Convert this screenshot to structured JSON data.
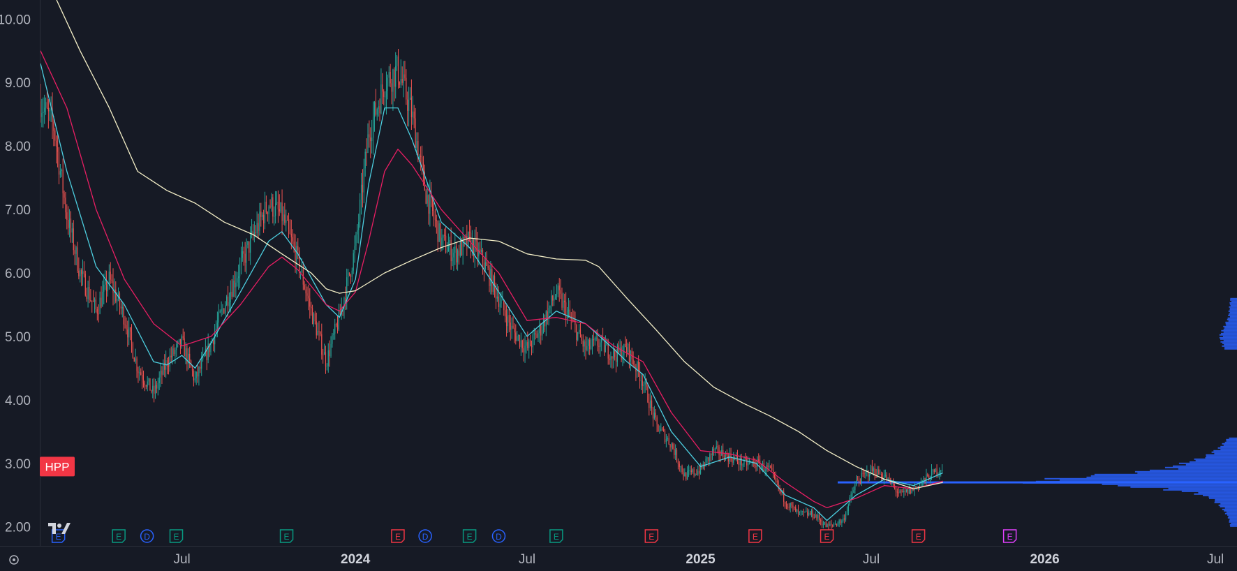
{
  "symbol_badge": {
    "label": "HPP",
    "color": "#f23645"
  },
  "colors": {
    "background": "#161a25",
    "up_candle": "#26a69a",
    "down_candle": "#ef5350",
    "ema_short": "#4dd0e1",
    "ema_mid": "#e91e63",
    "sma_long": "#f5f0c8",
    "volume_profile": "#2962ff",
    "axis_text": "#b2b5be"
  },
  "chart_data": {
    "type": "candlestick",
    "title": "",
    "xlabel": "",
    "ylabel": "",
    "ylim": [
      1.7,
      10.3
    ],
    "xlim": [
      "2023-02-01",
      "2026-07-15"
    ],
    "y_ticks": [
      "2.00",
      "3.00",
      "4.00",
      "5.00",
      "6.00",
      "7.00",
      "8.00",
      "9.00",
      "10.00"
    ],
    "x_ticks": [
      {
        "label": "Jul",
        "date": "2023-07-01",
        "bold": false
      },
      {
        "label": "2024",
        "date": "2024-01-01",
        "bold": true
      },
      {
        "label": "Jul",
        "date": "2024-07-01",
        "bold": false
      },
      {
        "label": "2025",
        "date": "2025-01-01",
        "bold": true
      },
      {
        "label": "Jul",
        "date": "2025-07-01",
        "bold": false
      },
      {
        "label": "2026",
        "date": "2026-01-01",
        "bold": true
      },
      {
        "label": "Jul",
        "date": "2026-07-01",
        "bold": false
      }
    ],
    "price_path": [
      [
        "2023-02-01",
        8.7
      ],
      [
        "2023-02-15",
        8.3
      ],
      [
        "2023-03-01",
        6.9
      ],
      [
        "2023-03-15",
        6.0
      ],
      [
        "2023-04-01",
        5.4
      ],
      [
        "2023-04-15",
        5.9
      ],
      [
        "2023-05-01",
        5.3
      ],
      [
        "2023-05-15",
        4.5
      ],
      [
        "2023-06-01",
        4.1
      ],
      [
        "2023-06-15",
        4.6
      ],
      [
        "2023-07-01",
        4.9
      ],
      [
        "2023-07-15",
        4.3
      ],
      [
        "2023-08-01",
        4.9
      ],
      [
        "2023-08-15",
        5.5
      ],
      [
        "2023-09-01",
        6.1
      ],
      [
        "2023-09-15",
        6.6
      ],
      [
        "2023-10-01",
        7.1
      ],
      [
        "2023-10-15",
        6.9
      ],
      [
        "2023-11-01",
        6.2
      ],
      [
        "2023-11-15",
        5.4
      ],
      [
        "2023-12-01",
        4.6
      ],
      [
        "2023-12-15",
        5.3
      ],
      [
        "2024-01-01",
        6.4
      ],
      [
        "2024-01-15",
        8.2
      ],
      [
        "2024-02-01",
        9.0
      ],
      [
        "2024-02-15",
        9.2
      ],
      [
        "2024-03-01",
        8.5
      ],
      [
        "2024-03-15",
        7.3
      ],
      [
        "2024-04-01",
        6.5
      ],
      [
        "2024-04-15",
        6.3
      ],
      [
        "2024-05-01",
        6.5
      ],
      [
        "2024-05-15",
        6.2
      ],
      [
        "2024-06-01",
        5.6
      ],
      [
        "2024-06-15",
        5.1
      ],
      [
        "2024-07-01",
        4.8
      ],
      [
        "2024-07-15",
        5.1
      ],
      [
        "2024-08-01",
        5.7
      ],
      [
        "2024-08-15",
        5.3
      ],
      [
        "2024-09-01",
        4.8
      ],
      [
        "2024-09-15",
        4.9
      ],
      [
        "2024-10-01",
        4.7
      ],
      [
        "2024-10-15",
        4.8
      ],
      [
        "2024-11-01",
        4.3
      ],
      [
        "2024-11-15",
        3.6
      ],
      [
        "2024-12-01",
        3.3
      ],
      [
        "2024-12-15",
        2.8
      ],
      [
        "2025-01-01",
        2.9
      ],
      [
        "2025-01-15",
        3.2
      ],
      [
        "2025-02-01",
        3.1
      ],
      [
        "2025-02-15",
        3.0
      ],
      [
        "2025-03-01",
        3.0
      ],
      [
        "2025-03-15",
        2.9
      ],
      [
        "2025-04-01",
        2.4
      ],
      [
        "2025-04-15",
        2.2
      ],
      [
        "2025-05-01",
        2.2
      ],
      [
        "2025-05-15",
        2.0
      ],
      [
        "2025-06-01",
        2.1
      ],
      [
        "2025-06-15",
        2.7
      ],
      [
        "2025-07-01",
        2.9
      ],
      [
        "2025-07-15",
        2.8
      ],
      [
        "2025-08-01",
        2.5
      ],
      [
        "2025-08-15",
        2.6
      ],
      [
        "2025-09-01",
        2.8
      ],
      [
        "2025-09-15",
        2.95
      ]
    ],
    "series": [
      {
        "name": "",
        "color": "#4dd0e1",
        "points": [
          [
            "2023-02-01",
            9.3
          ],
          [
            "2023-03-01",
            7.6
          ],
          [
            "2023-04-01",
            6.1
          ],
          [
            "2023-05-01",
            5.5
          ],
          [
            "2023-06-01",
            4.6
          ],
          [
            "2023-06-15",
            4.55
          ],
          [
            "2023-07-01",
            4.7
          ],
          [
            "2023-07-15",
            4.5
          ],
          [
            "2023-08-01",
            4.9
          ],
          [
            "2023-09-01",
            5.7
          ],
          [
            "2023-10-01",
            6.5
          ],
          [
            "2023-10-15",
            6.65
          ],
          [
            "2023-11-01",
            6.3
          ],
          [
            "2023-12-01",
            5.5
          ],
          [
            "2023-12-15",
            5.3
          ],
          [
            "2024-01-01",
            5.9
          ],
          [
            "2024-01-15",
            7.4
          ],
          [
            "2024-02-01",
            8.6
          ],
          [
            "2024-02-15",
            8.6
          ],
          [
            "2024-03-01",
            8.1
          ],
          [
            "2024-04-01",
            6.8
          ],
          [
            "2024-05-01",
            6.4
          ],
          [
            "2024-06-01",
            5.7
          ],
          [
            "2024-07-01",
            5.0
          ],
          [
            "2024-08-01",
            5.4
          ],
          [
            "2024-09-01",
            5.2
          ],
          [
            "2024-10-01",
            4.8
          ],
          [
            "2024-10-15",
            4.6
          ],
          [
            "2024-11-01",
            4.4
          ],
          [
            "2024-12-01",
            3.5
          ],
          [
            "2025-01-01",
            2.95
          ],
          [
            "2025-02-01",
            3.1
          ],
          [
            "2025-03-01",
            3.0
          ],
          [
            "2025-04-01",
            2.5
          ],
          [
            "2025-05-01",
            2.3
          ],
          [
            "2025-05-15",
            2.1
          ],
          [
            "2025-06-15",
            2.5
          ],
          [
            "2025-07-15",
            2.75
          ],
          [
            "2025-08-15",
            2.65
          ],
          [
            "2025-09-15",
            2.85
          ]
        ]
      },
      {
        "name": "",
        "color": "#e91e63",
        "points": [
          [
            "2023-02-01",
            9.5
          ],
          [
            "2023-03-01",
            8.6
          ],
          [
            "2023-04-01",
            7.0
          ],
          [
            "2023-05-01",
            5.9
          ],
          [
            "2023-06-01",
            5.2
          ],
          [
            "2023-07-01",
            4.85
          ],
          [
            "2023-08-01",
            5.0
          ],
          [
            "2023-09-01",
            5.5
          ],
          [
            "2023-10-01",
            6.1
          ],
          [
            "2023-10-15",
            6.25
          ],
          [
            "2023-11-01",
            6.05
          ],
          [
            "2023-12-01",
            5.5
          ],
          [
            "2023-12-15",
            5.4
          ],
          [
            "2024-01-01",
            5.7
          ],
          [
            "2024-01-15",
            6.5
          ],
          [
            "2024-02-01",
            7.6
          ],
          [
            "2024-02-15",
            7.95
          ],
          [
            "2024-03-01",
            7.7
          ],
          [
            "2024-04-01",
            7.0
          ],
          [
            "2024-05-01",
            6.5
          ],
          [
            "2024-06-01",
            6.0
          ],
          [
            "2024-07-01",
            5.25
          ],
          [
            "2024-08-01",
            5.3
          ],
          [
            "2024-09-01",
            5.2
          ],
          [
            "2024-10-01",
            4.85
          ],
          [
            "2024-11-01",
            4.6
          ],
          [
            "2024-12-01",
            3.8
          ],
          [
            "2025-01-01",
            3.2
          ],
          [
            "2025-02-01",
            3.15
          ],
          [
            "2025-03-01",
            3.05
          ],
          [
            "2025-04-01",
            2.7
          ],
          [
            "2025-05-01",
            2.4
          ],
          [
            "2025-05-15",
            2.3
          ],
          [
            "2025-06-15",
            2.45
          ],
          [
            "2025-07-15",
            2.65
          ],
          [
            "2025-08-15",
            2.6
          ],
          [
            "2025-09-15",
            2.72
          ]
        ]
      },
      {
        "name": "",
        "color": "#f5f0c8",
        "points": [
          [
            "2023-02-15",
            10.4
          ],
          [
            "2023-03-15",
            9.5
          ],
          [
            "2023-04-15",
            8.6
          ],
          [
            "2023-05-15",
            7.6
          ],
          [
            "2023-06-15",
            7.3
          ],
          [
            "2023-07-15",
            7.1
          ],
          [
            "2023-08-15",
            6.8
          ],
          [
            "2023-09-15",
            6.6
          ],
          [
            "2023-10-15",
            6.3
          ],
          [
            "2023-11-15",
            6.0
          ],
          [
            "2023-12-01",
            5.75
          ],
          [
            "2023-12-15",
            5.68
          ],
          [
            "2024-01-01",
            5.72
          ],
          [
            "2024-02-01",
            6.0
          ],
          [
            "2024-03-01",
            6.2
          ],
          [
            "2024-04-01",
            6.4
          ],
          [
            "2024-05-01",
            6.55
          ],
          [
            "2024-06-01",
            6.5
          ],
          [
            "2024-07-01",
            6.3
          ],
          [
            "2024-08-01",
            6.22
          ],
          [
            "2024-09-01",
            6.2
          ],
          [
            "2024-09-15",
            6.1
          ],
          [
            "2024-10-15",
            5.6
          ],
          [
            "2024-11-15",
            5.1
          ],
          [
            "2024-12-15",
            4.6
          ],
          [
            "2025-01-15",
            4.2
          ],
          [
            "2025-02-15",
            3.95
          ],
          [
            "2025-03-15",
            3.75
          ],
          [
            "2025-04-15",
            3.5
          ],
          [
            "2025-05-15",
            3.2
          ],
          [
            "2025-06-15",
            2.95
          ],
          [
            "2025-07-15",
            2.75
          ],
          [
            "2025-08-15",
            2.6
          ],
          [
            "2025-09-15",
            2.7
          ]
        ]
      }
    ],
    "events": [
      {
        "label": "E",
        "date": "2023-02-20",
        "kind": "dividend-partial"
      },
      {
        "label": "E",
        "date": "2023-04-25",
        "kind": "earnings-green"
      },
      {
        "label": "D",
        "date": "2023-05-25",
        "kind": "dividend"
      },
      {
        "label": "E",
        "date": "2023-06-25",
        "kind": "earnings-green"
      },
      {
        "label": "E",
        "date": "2023-10-20",
        "kind": "earnings-green"
      },
      {
        "label": "E",
        "date": "2024-02-15",
        "kind": "earnings-red"
      },
      {
        "label": "D",
        "date": "2024-03-15",
        "kind": "dividend"
      },
      {
        "label": "E",
        "date": "2024-05-01",
        "kind": "earnings-green"
      },
      {
        "label": "D",
        "date": "2024-06-01",
        "kind": "dividend"
      },
      {
        "label": "E",
        "date": "2024-08-01",
        "kind": "earnings-green"
      },
      {
        "label": "E",
        "date": "2024-11-10",
        "kind": "earnings-red"
      },
      {
        "label": "E",
        "date": "2025-02-28",
        "kind": "earnings-red"
      },
      {
        "label": "E",
        "date": "2025-05-15",
        "kind": "earnings-red"
      },
      {
        "label": "E",
        "date": "2025-08-20",
        "kind": "earnings-red"
      },
      {
        "label": "E",
        "date": "2025-11-25",
        "kind": "earnings-future"
      }
    ],
    "volume_profile": [
      [
        2.0,
        0.03
      ],
      [
        2.15,
        0.04
      ],
      [
        2.3,
        0.07
      ],
      [
        2.45,
        0.12
      ],
      [
        2.55,
        0.22
      ],
      [
        2.65,
        0.55
      ],
      [
        2.7,
        1.0
      ],
      [
        2.8,
        0.7
      ],
      [
        2.9,
        0.35
      ],
      [
        3.0,
        0.25
      ],
      [
        3.1,
        0.15
      ],
      [
        3.25,
        0.08
      ],
      [
        3.4,
        0.04
      ],
      [
        4.8,
        0.06
      ],
      [
        5.0,
        0.08
      ],
      [
        5.3,
        0.04
      ],
      [
        5.6,
        0.03
      ]
    ]
  }
}
